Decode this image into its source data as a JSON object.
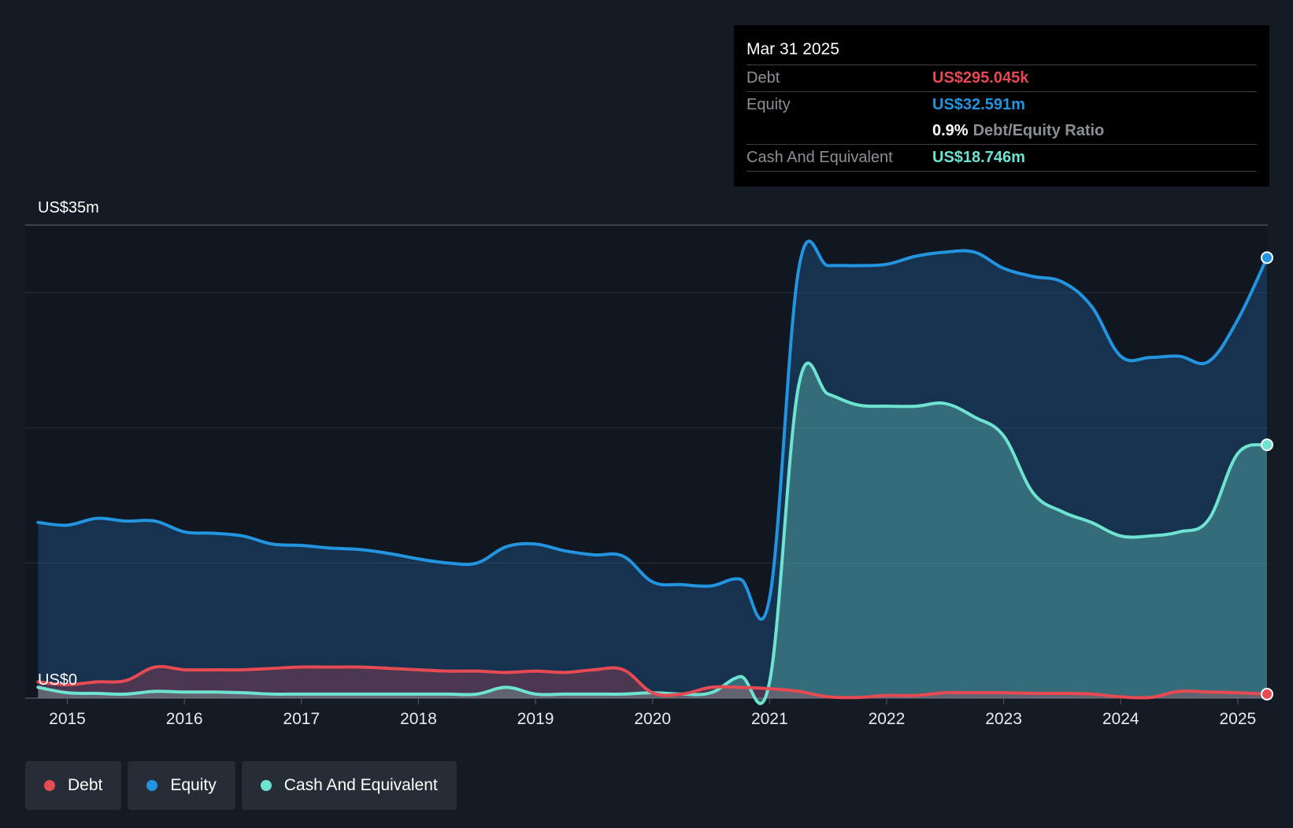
{
  "tooltip": {
    "date": "Mar 31 2025",
    "debt_label": "Debt",
    "debt_value": "US$295.045k",
    "equity_label": "Equity",
    "equity_value": "US$32.591m",
    "ratio_value": "0.9%",
    "ratio_label": "Debt/Equity Ratio",
    "cash_label": "Cash And Equivalent",
    "cash_value": "US$18.746m"
  },
  "legend": {
    "debt": "Debt",
    "equity": "Equity",
    "cash": "Cash And Equivalent"
  },
  "colors": {
    "debt": "#e64a52",
    "equity": "#2394df",
    "cash": "#6fe3d1",
    "background": "#151b24",
    "plot_background": "#111720"
  },
  "chart_data": {
    "type": "area",
    "y_top_label": "US$35m",
    "y_bottom_label": "US$0",
    "ylim": [
      0,
      35
    ],
    "y_unit": "US$m",
    "xlim": [
      2014.64,
      2025.25
    ],
    "x_ticks": [
      "2015",
      "2016",
      "2017",
      "2018",
      "2019",
      "2020",
      "2021",
      "2022",
      "2023",
      "2024",
      "2025"
    ],
    "grid": true,
    "legend_position": "bottom-left",
    "series": [
      {
        "name": "Equity",
        "color": "#2394df",
        "points": [
          [
            2014.75,
            13.0
          ],
          [
            2015.0,
            12.8
          ],
          [
            2015.25,
            13.3
          ],
          [
            2015.5,
            13.1
          ],
          [
            2015.75,
            13.1
          ],
          [
            2016.0,
            12.3
          ],
          [
            2016.25,
            12.2
          ],
          [
            2016.5,
            12.0
          ],
          [
            2016.75,
            11.4
          ],
          [
            2017.0,
            11.3
          ],
          [
            2017.25,
            11.1
          ],
          [
            2017.5,
            11.0
          ],
          [
            2017.75,
            10.7
          ],
          [
            2018.0,
            10.3
          ],
          [
            2018.25,
            10.0
          ],
          [
            2018.5,
            10.0
          ],
          [
            2018.75,
            11.2
          ],
          [
            2019.0,
            11.4
          ],
          [
            2019.25,
            10.9
          ],
          [
            2019.5,
            10.6
          ],
          [
            2019.75,
            10.5
          ],
          [
            2020.0,
            8.6
          ],
          [
            2020.25,
            8.4
          ],
          [
            2020.5,
            8.3
          ],
          [
            2020.75,
            8.8
          ],
          [
            2021.0,
            7.4
          ],
          [
            2021.25,
            31.8
          ],
          [
            2021.5,
            32.0
          ],
          [
            2021.75,
            32.0
          ],
          [
            2022.0,
            32.1
          ],
          [
            2022.25,
            32.7
          ],
          [
            2022.5,
            33.0
          ],
          [
            2022.75,
            33.0
          ],
          [
            2023.0,
            31.8
          ],
          [
            2023.25,
            31.2
          ],
          [
            2023.5,
            30.8
          ],
          [
            2023.75,
            29.0
          ],
          [
            2024.0,
            25.3
          ],
          [
            2024.25,
            25.2
          ],
          [
            2024.5,
            25.3
          ],
          [
            2024.75,
            24.9
          ],
          [
            2025.0,
            28.0
          ],
          [
            2025.25,
            32.591
          ]
        ]
      },
      {
        "name": "Cash And Equivalent",
        "color": "#6fe3d1",
        "points": [
          [
            2014.75,
            0.8
          ],
          [
            2015.0,
            0.4
          ],
          [
            2015.25,
            0.35
          ],
          [
            2015.5,
            0.3
          ],
          [
            2015.75,
            0.5
          ],
          [
            2016.0,
            0.45
          ],
          [
            2016.25,
            0.45
          ],
          [
            2016.5,
            0.4
          ],
          [
            2016.75,
            0.3
          ],
          [
            2017.0,
            0.3
          ],
          [
            2017.25,
            0.3
          ],
          [
            2017.5,
            0.3
          ],
          [
            2017.75,
            0.3
          ],
          [
            2018.0,
            0.3
          ],
          [
            2018.25,
            0.3
          ],
          [
            2018.5,
            0.3
          ],
          [
            2018.75,
            0.8
          ],
          [
            2019.0,
            0.3
          ],
          [
            2019.25,
            0.3
          ],
          [
            2019.5,
            0.3
          ],
          [
            2019.75,
            0.3
          ],
          [
            2020.0,
            0.4
          ],
          [
            2020.25,
            0.3
          ],
          [
            2020.5,
            0.4
          ],
          [
            2020.75,
            1.6
          ],
          [
            2021.0,
            1.2
          ],
          [
            2021.25,
            23.2
          ],
          [
            2021.5,
            22.5
          ],
          [
            2021.75,
            21.7
          ],
          [
            2022.0,
            21.6
          ],
          [
            2022.25,
            21.6
          ],
          [
            2022.5,
            21.8
          ],
          [
            2022.75,
            20.8
          ],
          [
            2023.0,
            19.4
          ],
          [
            2023.25,
            15.2
          ],
          [
            2023.5,
            13.8
          ],
          [
            2023.75,
            13.0
          ],
          [
            2024.0,
            12.0
          ],
          [
            2024.25,
            12.0
          ],
          [
            2024.5,
            12.3
          ],
          [
            2024.75,
            13.2
          ],
          [
            2025.0,
            18.1
          ],
          [
            2025.25,
            18.746
          ]
        ]
      },
      {
        "name": "Debt",
        "color": "#e64a52",
        "points": [
          [
            2014.75,
            1.2
          ],
          [
            2015.0,
            1.0
          ],
          [
            2015.25,
            1.2
          ],
          [
            2015.5,
            1.3
          ],
          [
            2015.75,
            2.3
          ],
          [
            2016.0,
            2.1
          ],
          [
            2016.25,
            2.1
          ],
          [
            2016.5,
            2.1
          ],
          [
            2016.75,
            2.2
          ],
          [
            2017.0,
            2.3
          ],
          [
            2017.25,
            2.3
          ],
          [
            2017.5,
            2.3
          ],
          [
            2017.75,
            2.2
          ],
          [
            2018.0,
            2.1
          ],
          [
            2018.25,
            2.0
          ],
          [
            2018.5,
            2.0
          ],
          [
            2018.75,
            1.9
          ],
          [
            2019.0,
            2.0
          ],
          [
            2019.25,
            1.9
          ],
          [
            2019.5,
            2.1
          ],
          [
            2019.75,
            2.1
          ],
          [
            2020.0,
            0.4
          ],
          [
            2020.25,
            0.3
          ],
          [
            2020.5,
            0.8
          ],
          [
            2020.75,
            0.8
          ],
          [
            2021.0,
            0.7
          ],
          [
            2021.25,
            0.5
          ],
          [
            2021.5,
            0.1
          ],
          [
            2021.75,
            0.05
          ],
          [
            2022.0,
            0.2
          ],
          [
            2022.25,
            0.2
          ],
          [
            2022.5,
            0.4
          ],
          [
            2022.75,
            0.4
          ],
          [
            2023.0,
            0.4
          ],
          [
            2023.25,
            0.35
          ],
          [
            2023.5,
            0.35
          ],
          [
            2023.75,
            0.3
          ],
          [
            2024.0,
            0.1
          ],
          [
            2024.25,
            0.05
          ],
          [
            2024.5,
            0.5
          ],
          [
            2024.75,
            0.45
          ],
          [
            2025.0,
            0.4
          ],
          [
            2025.25,
            0.295
          ]
        ]
      }
    ]
  }
}
